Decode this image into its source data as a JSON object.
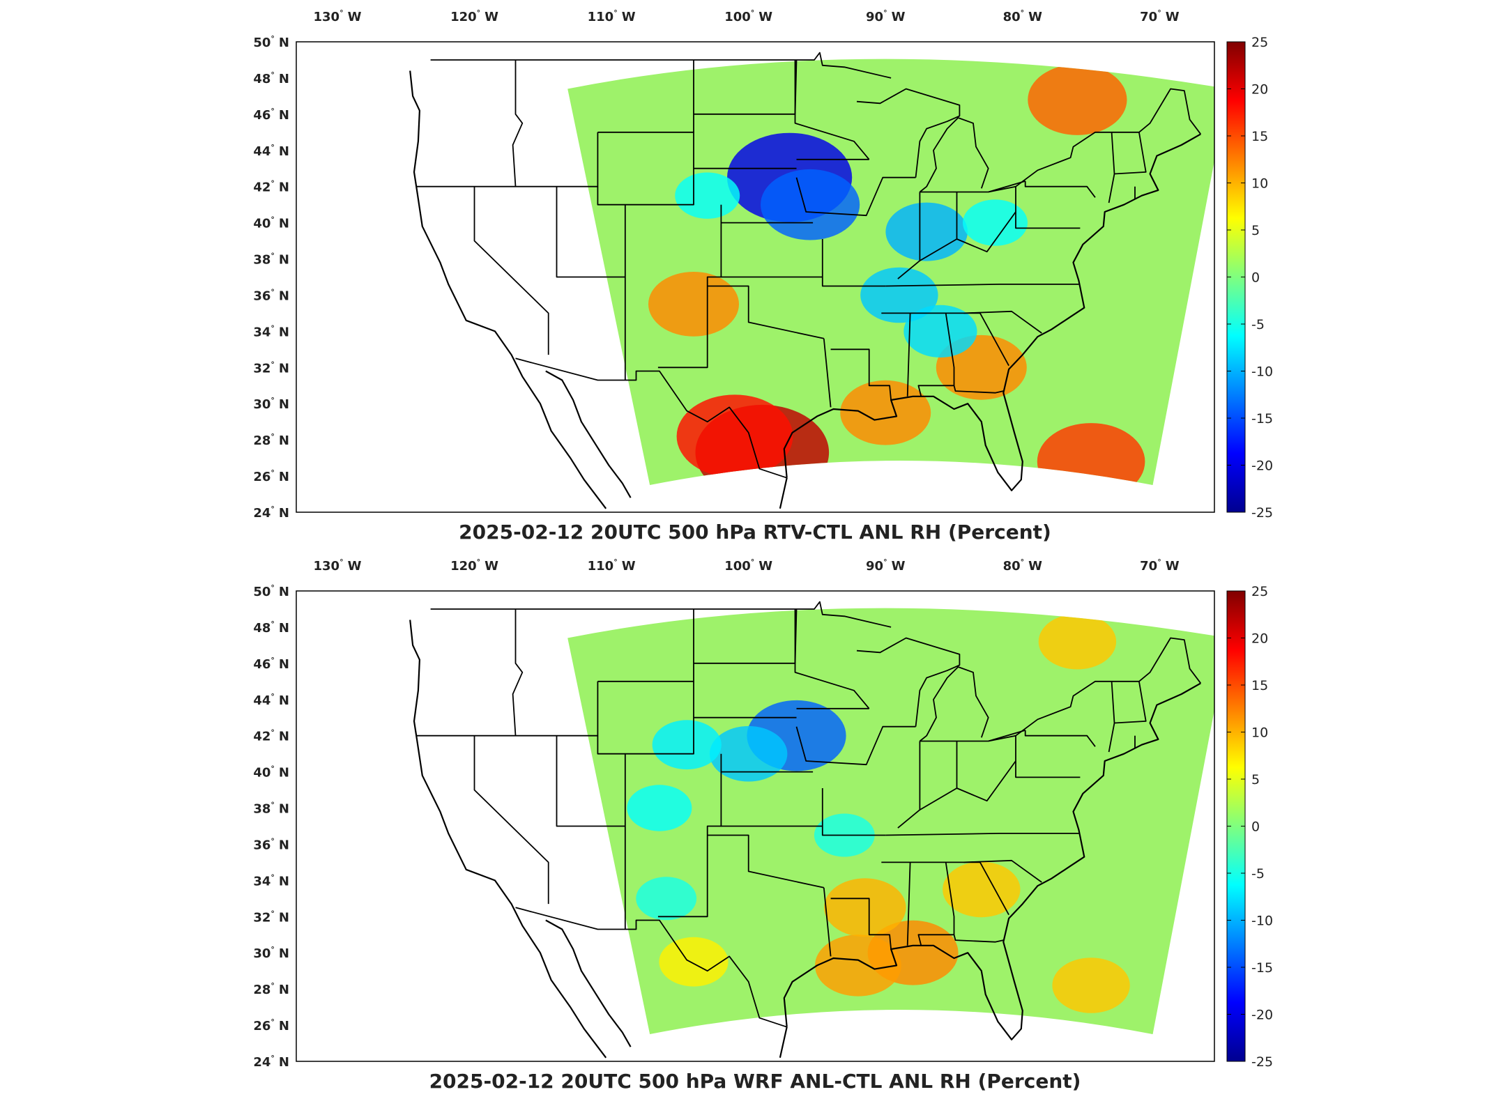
{
  "colors": {
    "colormap": [
      "#00008f",
      "#0000ff",
      "#007fff",
      "#00ffff",
      "#7fff7f",
      "#ffff00",
      "#ff7f00",
      "#ff0000",
      "#800000"
    ],
    "land_line": "#000000",
    "frame": "#000000"
  },
  "lon_ticks": [
    {
      "value": -130,
      "deg": "130",
      "hem": "W"
    },
    {
      "value": -120,
      "deg": "120",
      "hem": "W"
    },
    {
      "value": -110,
      "deg": "110",
      "hem": "W"
    },
    {
      "value": -100,
      "deg": "100",
      "hem": "W"
    },
    {
      "value": -90,
      "deg": "90",
      "hem": "W"
    },
    {
      "value": -80,
      "deg": "80",
      "hem": "W"
    },
    {
      "value": -70,
      "deg": "70",
      "hem": "W"
    }
  ],
  "lat_ticks": [
    {
      "value": 50,
      "deg": "50",
      "hem": "N"
    },
    {
      "value": 48,
      "deg": "48",
      "hem": "N"
    },
    {
      "value": 46,
      "deg": "46",
      "hem": "N"
    },
    {
      "value": 44,
      "deg": "44",
      "hem": "N"
    },
    {
      "value": 42,
      "deg": "42",
      "hem": "N"
    },
    {
      "value": 40,
      "deg": "40",
      "hem": "N"
    },
    {
      "value": 38,
      "deg": "38",
      "hem": "N"
    },
    {
      "value": 36,
      "deg": "36",
      "hem": "N"
    },
    {
      "value": 34,
      "deg": "34",
      "hem": "N"
    },
    {
      "value": 32,
      "deg": "32",
      "hem": "N"
    },
    {
      "value": 30,
      "deg": "30",
      "hem": "N"
    },
    {
      "value": 28,
      "deg": "28",
      "hem": "N"
    },
    {
      "value": 26,
      "deg": "26",
      "hem": "N"
    },
    {
      "value": 24,
      "deg": "24",
      "hem": "N"
    }
  ],
  "colorbar": {
    "range": [
      -25,
      25
    ],
    "ticks": [
      "25",
      "20",
      "15",
      "10",
      "5",
      "0",
      "-5",
      "-10",
      "-15",
      "-20",
      "-25"
    ]
  },
  "panels": [
    {
      "title": "2025-02-12 20UTC 500 hPa RTV-CTL ANL RH (Percent)",
      "chart_data": {
        "type": "heatmap",
        "variable": "RH",
        "units": "Percent",
        "range": [
          -25,
          25
        ],
        "features": [
          {
            "lon": -99.0,
            "lat": 27.3,
            "value": 22
          },
          {
            "lon": -101.0,
            "lat": 28.2,
            "value": 18
          },
          {
            "lon": -104.0,
            "lat": 35.5,
            "value": 12
          },
          {
            "lon": -76.0,
            "lat": 46.8,
            "value": 14
          },
          {
            "lon": -75.0,
            "lat": 26.8,
            "value": 16
          },
          {
            "lon": -83.0,
            "lat": 32.0,
            "value": 12
          },
          {
            "lon": -90.0,
            "lat": 29.5,
            "value": 12
          },
          {
            "lon": -97.0,
            "lat": 42.5,
            "value": -20
          },
          {
            "lon": -95.5,
            "lat": 41.0,
            "value": -14
          },
          {
            "lon": -87.0,
            "lat": 39.5,
            "value": -10
          },
          {
            "lon": -89.0,
            "lat": 36.0,
            "value": -9
          },
          {
            "lon": -86.0,
            "lat": 34.0,
            "value": -8
          },
          {
            "lon": -103.0,
            "lat": 41.5,
            "value": -6
          },
          {
            "lon": -82.0,
            "lat": 40.0,
            "value": -6
          }
        ]
      }
    },
    {
      "title": "2025-02-12 20UTC 500 hPa WRF ANL-CTL ANL RH (Percent)",
      "chart_data": {
        "type": "heatmap",
        "variable": "RH",
        "units": "Percent",
        "range": [
          -25,
          25
        ],
        "features": [
          {
            "lon": -96.5,
            "lat": 42.0,
            "value": -14
          },
          {
            "lon": -100.0,
            "lat": 41.0,
            "value": -9
          },
          {
            "lon": -104.5,
            "lat": 41.5,
            "value": -7
          },
          {
            "lon": -106.5,
            "lat": 38.0,
            "value": -6
          },
          {
            "lon": -106.0,
            "lat": 33.0,
            "value": -5
          },
          {
            "lon": -93.0,
            "lat": 36.5,
            "value": -5
          },
          {
            "lon": -88.0,
            "lat": 30.0,
            "value": 12
          },
          {
            "lon": -92.0,
            "lat": 29.3,
            "value": 11
          },
          {
            "lon": -91.5,
            "lat": 32.5,
            "value": 10
          },
          {
            "lon": -83.0,
            "lat": 33.5,
            "value": 9
          },
          {
            "lon": -76.0,
            "lat": 47.2,
            "value": 9
          },
          {
            "lon": -75.0,
            "lat": 28.2,
            "value": 9
          },
          {
            "lon": -104.0,
            "lat": 29.5,
            "value": 7
          }
        ]
      }
    }
  ]
}
